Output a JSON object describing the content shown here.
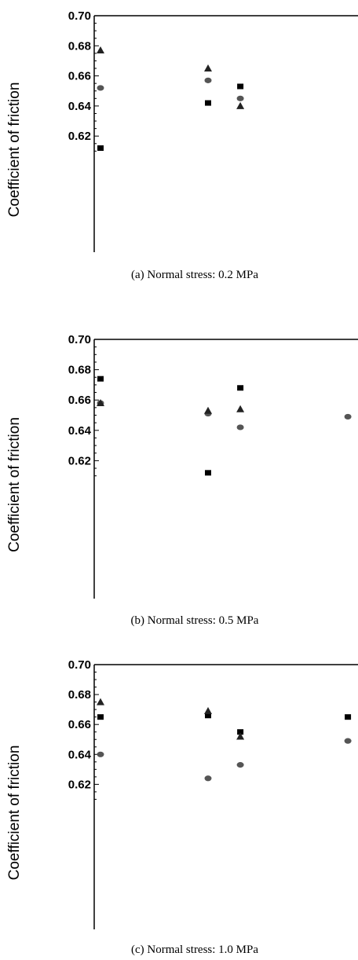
{
  "chart_data": [
    {
      "type": "scatter",
      "caption": "(a)  Normal  stress:  0.2  MPa",
      "ylabel": "Coefficient of friction",
      "ylim": [
        0.6,
        0.7
      ],
      "yticks": [
        "0.70",
        "0.68",
        "0.66",
        "0.64",
        "0.62"
      ],
      "grid": false,
      "series": [
        {
          "marker": "square",
          "points": [
            {
              "x": 1,
              "y": 0.612
            },
            {
              "x": 2,
              "y": 0.642
            },
            {
              "x": 2.3,
              "y": 0.653
            }
          ]
        },
        {
          "marker": "circle",
          "points": [
            {
              "x": 1,
              "y": 0.652
            },
            {
              "x": 2,
              "y": 0.657
            },
            {
              "x": 2.3,
              "y": 0.645
            }
          ]
        },
        {
          "marker": "triangle",
          "points": [
            {
              "x": 1,
              "y": 0.677
            },
            {
              "x": 2,
              "y": 0.665
            },
            {
              "x": 2.3,
              "y": 0.64
            }
          ]
        }
      ]
    },
    {
      "type": "scatter",
      "caption": "(b)  Normal  stress:  0.5  MPa",
      "ylabel": "Coefficient of friction",
      "ylim": [
        0.6,
        0.7
      ],
      "yticks": [
        "0.70",
        "0.68",
        "0.66",
        "0.64",
        "0.62"
      ],
      "grid": false,
      "series": [
        {
          "marker": "square",
          "points": [
            {
              "x": 1,
              "y": 0.674
            },
            {
              "x": 2,
              "y": 0.612
            },
            {
              "x": 2.3,
              "y": 0.668
            }
          ]
        },
        {
          "marker": "circle",
          "points": [
            {
              "x": 1,
              "y": 0.658
            },
            {
              "x": 2,
              "y": 0.651
            },
            {
              "x": 2.3,
              "y": 0.642
            },
            {
              "x": 3.3,
              "y": 0.649
            }
          ]
        },
        {
          "marker": "triangle",
          "points": [
            {
              "x": 1,
              "y": 0.658
            },
            {
              "x": 2,
              "y": 0.653
            },
            {
              "x": 2.3,
              "y": 0.654
            }
          ]
        }
      ]
    },
    {
      "type": "scatter",
      "caption": "(c)  Normal  stress:  1.0  MPa",
      "ylabel": "Coefficient of friction",
      "ylim": [
        0.6,
        0.7
      ],
      "yticks": [
        "0.70",
        "0.68",
        "0.66",
        "0.64",
        "0.62"
      ],
      "grid": false,
      "series": [
        {
          "marker": "square",
          "points": [
            {
              "x": 1,
              "y": 0.665
            },
            {
              "x": 2,
              "y": 0.666
            },
            {
              "x": 2.3,
              "y": 0.655
            },
            {
              "x": 3.3,
              "y": 0.665
            }
          ]
        },
        {
          "marker": "circle",
          "points": [
            {
              "x": 1,
              "y": 0.64
            },
            {
              "x": 2,
              "y": 0.624
            },
            {
              "x": 2.3,
              "y": 0.633
            },
            {
              "x": 3.3,
              "y": 0.649
            }
          ]
        },
        {
          "marker": "triangle",
          "points": [
            {
              "x": 1,
              "y": 0.675
            },
            {
              "x": 2,
              "y": 0.669
            },
            {
              "x": 2.3,
              "y": 0.652
            }
          ]
        }
      ]
    }
  ],
  "colors": {
    "axis": "#000000",
    "square": "#000000",
    "circle": "#555555",
    "triangle": "#222222"
  }
}
